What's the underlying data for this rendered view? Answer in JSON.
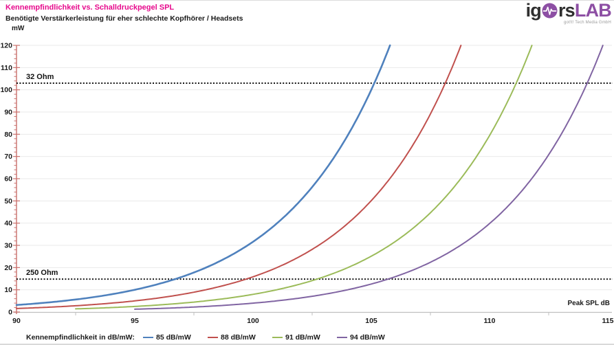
{
  "header": {
    "title": "Kennempfindlichkeit vs. Schalldruckpegel SPL",
    "subtitle": "Benötigte Verstärkerleistung  für eher schlechte Kopfhörer / Headsets",
    "title_color": "#e7098c"
  },
  "logo": {
    "part1": "ig",
    "part2": "rs",
    "part3": "LAB",
    "tagline": "got!t! Tech Media GmbH",
    "purple": "#8d4fa4",
    "dark": "#2f2f2f"
  },
  "chart_data": {
    "type": "line",
    "title": "Kennempfindlichkeit vs. Schalldruckpegel SPL",
    "subtitle": "Benötigte Verstärkerleistung  für eher schlechte Kopfhörer / Headsets",
    "xlabel": "Peak SPL dB",
    "ylabel": "mW",
    "xlim": [
      90,
      115
    ],
    "ylim": [
      0,
      120
    ],
    "x_ticks": [
      90,
      95,
      100,
      105,
      110,
      115
    ],
    "x_tick_marks_between": [
      92.5,
      97.5,
      102.5,
      107.5,
      112.5
    ],
    "y_ticks": [
      0,
      10,
      20,
      30,
      40,
      50,
      60,
      70,
      80,
      90,
      100,
      110,
      120
    ],
    "y_minor_step": 2,
    "grid": "horizontal",
    "legend_title": "Kennempfindlichkeit  in dB/mW:",
    "legend_position": "bottom",
    "model": "power_mW = 10 ^ ((peak_spl_db - sensitivity_db_mw) / 10), clipped at 120 mW",
    "series": [
      {
        "name": "85 dB/mW",
        "color": "#4f81bd",
        "sensitivity_db_mw": 85,
        "x_start": 90,
        "stroke_width": 2.6,
        "points": [
          [
            90,
            3.16
          ],
          [
            91,
            3.98
          ],
          [
            92,
            5.01
          ],
          [
            93,
            6.31
          ],
          [
            94,
            7.94
          ],
          [
            95,
            10
          ],
          [
            96,
            12.59
          ],
          [
            97,
            15.85
          ],
          [
            98,
            19.95
          ],
          [
            99,
            25.12
          ],
          [
            100,
            31.62
          ],
          [
            101,
            39.81
          ],
          [
            102,
            50.12
          ],
          [
            103,
            63.1
          ],
          [
            104,
            79.43
          ],
          [
            105,
            100
          ],
          [
            105.79,
            120
          ]
        ]
      },
      {
        "name": "88 dB/mW",
        "color": "#c0504d",
        "sensitivity_db_mw": 88,
        "x_start": 90,
        "stroke_width": 2,
        "points": [
          [
            90,
            1.58
          ],
          [
            91,
            2.0
          ],
          [
            92,
            2.51
          ],
          [
            93,
            3.16
          ],
          [
            94,
            3.98
          ],
          [
            95,
            5.01
          ],
          [
            96,
            6.31
          ],
          [
            97,
            7.94
          ],
          [
            98,
            10
          ],
          [
            99,
            12.59
          ],
          [
            100,
            15.85
          ],
          [
            101,
            19.95
          ],
          [
            102,
            25.12
          ],
          [
            103,
            31.62
          ],
          [
            104,
            39.81
          ],
          [
            105,
            50.12
          ],
          [
            106,
            63.1
          ],
          [
            107,
            79.43
          ],
          [
            108,
            100
          ],
          [
            108.79,
            120
          ]
        ]
      },
      {
        "name": "91 dB/mW",
        "color": "#9bbb59",
        "sensitivity_db_mw": 91,
        "x_start": 92.5,
        "stroke_width": 2,
        "points": [
          [
            92.5,
            1.41
          ],
          [
            94,
            2.0
          ],
          [
            95,
            2.51
          ],
          [
            96,
            3.16
          ],
          [
            97,
            3.98
          ],
          [
            98,
            5.01
          ],
          [
            99,
            6.31
          ],
          [
            100,
            7.94
          ],
          [
            101,
            10
          ],
          [
            102,
            12.59
          ],
          [
            103,
            15.85
          ],
          [
            104,
            19.95
          ],
          [
            105,
            25.12
          ],
          [
            106,
            31.62
          ],
          [
            107,
            39.81
          ],
          [
            108,
            50.12
          ],
          [
            109,
            63.1
          ],
          [
            110,
            79.43
          ],
          [
            111,
            100
          ],
          [
            111.79,
            120
          ]
        ]
      },
      {
        "name": "94 dB/mW",
        "color": "#8064a2",
        "sensitivity_db_mw": 94,
        "x_start": 95,
        "stroke_width": 2,
        "points": [
          [
            95,
            1.26
          ],
          [
            96,
            1.58
          ],
          [
            97,
            2.0
          ],
          [
            98,
            2.51
          ],
          [
            99,
            3.16
          ],
          [
            100,
            3.98
          ],
          [
            101,
            5.01
          ],
          [
            102,
            6.31
          ],
          [
            103,
            7.94
          ],
          [
            104,
            10
          ],
          [
            105,
            12.59
          ],
          [
            106,
            15.85
          ],
          [
            107,
            19.95
          ],
          [
            108,
            25.12
          ],
          [
            109,
            31.62
          ],
          [
            110,
            39.81
          ],
          [
            111,
            50.12
          ],
          [
            112,
            63.1
          ],
          [
            113,
            79.43
          ],
          [
            114,
            100
          ],
          [
            114.79,
            120
          ]
        ]
      }
    ],
    "reference_lines": [
      {
        "label": "32 Ohm",
        "value_mw": 103
      },
      {
        "label": "250 Ohm",
        "value_mw": 14.8
      }
    ],
    "axis_colors": {
      "y_axis": "#c9706c",
      "x_axis": "#bfbfbf",
      "gridline": "#e9e9e9",
      "tick_label": "#1a1a1a",
      "reference_line": "#141414"
    }
  }
}
